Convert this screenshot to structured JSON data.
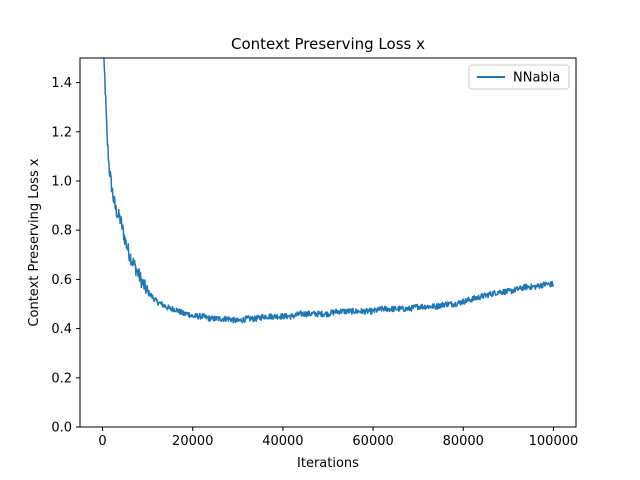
{
  "chart_data": {
    "type": "line",
    "title": "Context Preserving Loss x",
    "xlabel": "Iterations",
    "ylabel": "Context Preserving Loss x",
    "xlim": [
      -5000,
      105000
    ],
    "ylim": [
      0.0,
      1.5
    ],
    "xticks": [
      0,
      20000,
      40000,
      60000,
      80000,
      100000
    ],
    "xtick_labels": [
      "0",
      "20000",
      "40000",
      "60000",
      "80000",
      "100000"
    ],
    "yticks": [
      0.0,
      0.2,
      0.4,
      0.6,
      0.8,
      1.0,
      1.2,
      1.4
    ],
    "ytick_labels": [
      "0.0",
      "0.2",
      "0.4",
      "0.6",
      "0.8",
      "1.0",
      "1.2",
      "1.4"
    ],
    "grid": false,
    "legend": {
      "position": "top-right"
    },
    "series": [
      {
        "name": "NNabla",
        "color": "#1f77b4",
        "x": [
          0,
          500,
          1000,
          1500,
          2000,
          2500,
          3000,
          3500,
          4000,
          4500,
          5000,
          6000,
          7000,
          8000,
          9000,
          10000,
          11000,
          12000,
          13000,
          14000,
          15000,
          16000,
          17000,
          18000,
          19000,
          20000,
          22000,
          24000,
          26000,
          28000,
          30000,
          32000,
          34000,
          36000,
          38000,
          40000,
          42000,
          44000,
          46000,
          48000,
          50000,
          52000,
          54000,
          56000,
          58000,
          60000,
          62000,
          64000,
          66000,
          68000,
          70000,
          72000,
          74000,
          76000,
          78000,
          80000,
          82000,
          84000,
          86000,
          88000,
          90000,
          92000,
          94000,
          96000,
          98000,
          100000
        ],
        "y": [
          1.55,
          1.42,
          1.18,
          1.05,
          0.98,
          0.92,
          0.88,
          0.86,
          0.84,
          0.8,
          0.76,
          0.7,
          0.66,
          0.62,
          0.58,
          0.55,
          0.53,
          0.51,
          0.5,
          0.49,
          0.48,
          0.48,
          0.47,
          0.46,
          0.46,
          0.45,
          0.45,
          0.44,
          0.44,
          0.44,
          0.43,
          0.44,
          0.44,
          0.45,
          0.45,
          0.45,
          0.45,
          0.46,
          0.46,
          0.46,
          0.46,
          0.47,
          0.47,
          0.47,
          0.47,
          0.47,
          0.48,
          0.48,
          0.48,
          0.48,
          0.49,
          0.49,
          0.49,
          0.5,
          0.5,
          0.51,
          0.52,
          0.53,
          0.54,
          0.55,
          0.55,
          0.56,
          0.57,
          0.57,
          0.58,
          0.58
        ]
      }
    ]
  }
}
